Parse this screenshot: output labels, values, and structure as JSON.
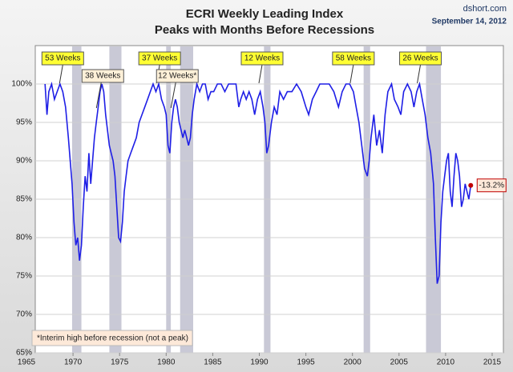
{
  "chart_data": {
    "type": "line",
    "title": "ECRI Weekly Leading Index",
    "subtitle": "Peaks with Months Before Recessions",
    "source": "dshort.com",
    "date": "September 14, 2012",
    "footnote": "*Interim high before recession (not a peak)",
    "end_label": "-13.2%",
    "color": "#1f1fe6",
    "recession_color": "#c9c9d6",
    "grid": true,
    "xlim": [
      1965,
      2015
    ],
    "xticks": [
      1965,
      1970,
      1975,
      1980,
      1985,
      1990,
      1995,
      2000,
      2005,
      2010,
      2015
    ],
    "ylim": [
      65,
      105
    ],
    "yticks": [
      {
        "value": 65,
        "label": "65%"
      },
      {
        "value": 70,
        "label": "70%"
      },
      {
        "value": 75,
        "label": "75%"
      },
      {
        "value": 80,
        "label": "80%"
      },
      {
        "value": 85,
        "label": "85%"
      },
      {
        "value": 90,
        "label": "90%"
      },
      {
        "value": 95,
        "label": "95%"
      },
      {
        "value": 100,
        "label": "100%"
      }
    ],
    "recessions": [
      [
        1969.9,
        1970.9
      ],
      [
        1973.9,
        1975.2
      ],
      [
        1980.0,
        1980.5
      ],
      [
        1981.5,
        1982.9
      ],
      [
        1990.5,
        1991.2
      ],
      [
        2001.2,
        2001.9
      ],
      [
        2007.9,
        2009.5
      ]
    ],
    "annotations": [
      {
        "text": "53 Weeks",
        "x": 1968.9
      },
      {
        "text": "38 Weeks",
        "x": 1973.2
      },
      {
        "text": "37 Weeks",
        "x": 1979.3
      },
      {
        "text": "12 Weeks*",
        "x": 1981.2
      },
      {
        "text": "12 Weeks",
        "x": 1990.3
      },
      {
        "text": "58 Weeks",
        "x": 2000.1
      },
      {
        "text": "26 Weeks",
        "x": 2007.3
      }
    ],
    "x": [
      1967.0,
      1967.2,
      1967.4,
      1967.7,
      1968.0,
      1968.3,
      1968.6,
      1968.9,
      1969.2,
      1969.5,
      1969.7,
      1969.9,
      1970.1,
      1970.3,
      1970.5,
      1970.7,
      1970.9,
      1971.1,
      1971.3,
      1971.5,
      1971.7,
      1971.9,
      1972.1,
      1972.3,
      1972.5,
      1972.7,
      1972.9,
      1973.1,
      1973.3,
      1973.5,
      1973.7,
      1973.9,
      1974.1,
      1974.3,
      1974.5,
      1974.7,
      1974.9,
      1975.1,
      1975.3,
      1975.5,
      1975.7,
      1975.9,
      1976.2,
      1976.5,
      1976.8,
      1977.1,
      1977.4,
      1977.7,
      1978.0,
      1978.3,
      1978.6,
      1978.9,
      1979.2,
      1979.5,
      1979.8,
      1980.0,
      1980.2,
      1980.4,
      1980.6,
      1980.8,
      1981.0,
      1981.2,
      1981.4,
      1981.6,
      1981.8,
      1982.0,
      1982.2,
      1982.4,
      1982.6,
      1982.8,
      1983.0,
      1983.3,
      1983.6,
      1983.9,
      1984.2,
      1984.5,
      1984.8,
      1985.1,
      1985.5,
      1985.9,
      1986.3,
      1986.7,
      1987.1,
      1987.5,
      1987.8,
      1988.0,
      1988.3,
      1988.6,
      1988.9,
      1989.2,
      1989.5,
      1989.8,
      1990.1,
      1990.4,
      1990.6,
      1990.8,
      1991.0,
      1991.3,
      1991.6,
      1991.9,
      1992.2,
      1992.6,
      1993.0,
      1993.5,
      1994.0,
      1994.5,
      1995.0,
      1995.3,
      1995.7,
      1996.1,
      1996.5,
      1997.0,
      1997.5,
      1998.0,
      1998.5,
      1998.9,
      1999.3,
      1999.7,
      2000.1,
      2000.4,
      2000.7,
      2001.0,
      2001.3,
      2001.6,
      2001.8,
      2002.0,
      2002.3,
      2002.6,
      2002.9,
      2003.2,
      2003.5,
      2003.8,
      2004.2,
      2004.5,
      2004.9,
      2005.2,
      2005.5,
      2005.9,
      2006.3,
      2006.6,
      2006.9,
      2007.2,
      2007.5,
      2007.8,
      2008.1,
      2008.4,
      2008.7,
      2008.9,
      2009.1,
      2009.3,
      2009.5,
      2009.7,
      2009.9,
      2010.1,
      2010.3,
      2010.5,
      2010.7,
      2010.9,
      2011.1,
      2011.3,
      2011.5,
      2011.7,
      2011.9,
      2012.1,
      2012.3,
      2012.5,
      2012.7
    ],
    "values": [
      100,
      96,
      99,
      100,
      98,
      99,
      100,
      99,
      97,
      93,
      90,
      87,
      82,
      79,
      80,
      77,
      79,
      84,
      88,
      86,
      91,
      87,
      90,
      93,
      95,
      97,
      99,
      100,
      99,
      96,
      94,
      92,
      91,
      90,
      88,
      84,
      80,
      79.5,
      82,
      86,
      88,
      90,
      91,
      92,
      93,
      95,
      96,
      97,
      98,
      99,
      100,
      99,
      100,
      98,
      97,
      96,
      92,
      91,
      95,
      97,
      98,
      97,
      95,
      94,
      93,
      94,
      93,
      92,
      93,
      96,
      98,
      100,
      99,
      100,
      100,
      98,
      99,
      99,
      100,
      100,
      99,
      100,
      100,
      100,
      97,
      98,
      99,
      98,
      99,
      98,
      96,
      98,
      99,
      97,
      95,
      91,
      92,
      95,
      97,
      96,
      99,
      98,
      99,
      99,
      100,
      99,
      97,
      96,
      98,
      99,
      100,
      100,
      100,
      99,
      97,
      99,
      100,
      100,
      99,
      97,
      95,
      92,
      89,
      88,
      90,
      93,
      96,
      92,
      94,
      91,
      96,
      99,
      100,
      98,
      97,
      96,
      99,
      100,
      99,
      97,
      99,
      100,
      98,
      96,
      93,
      91,
      87,
      80,
      74,
      75,
      82,
      86,
      88,
      90,
      91,
      86,
      84,
      88,
      91,
      90,
      88,
      84,
      85,
      87,
      86,
      85,
      86.8
    ]
  }
}
